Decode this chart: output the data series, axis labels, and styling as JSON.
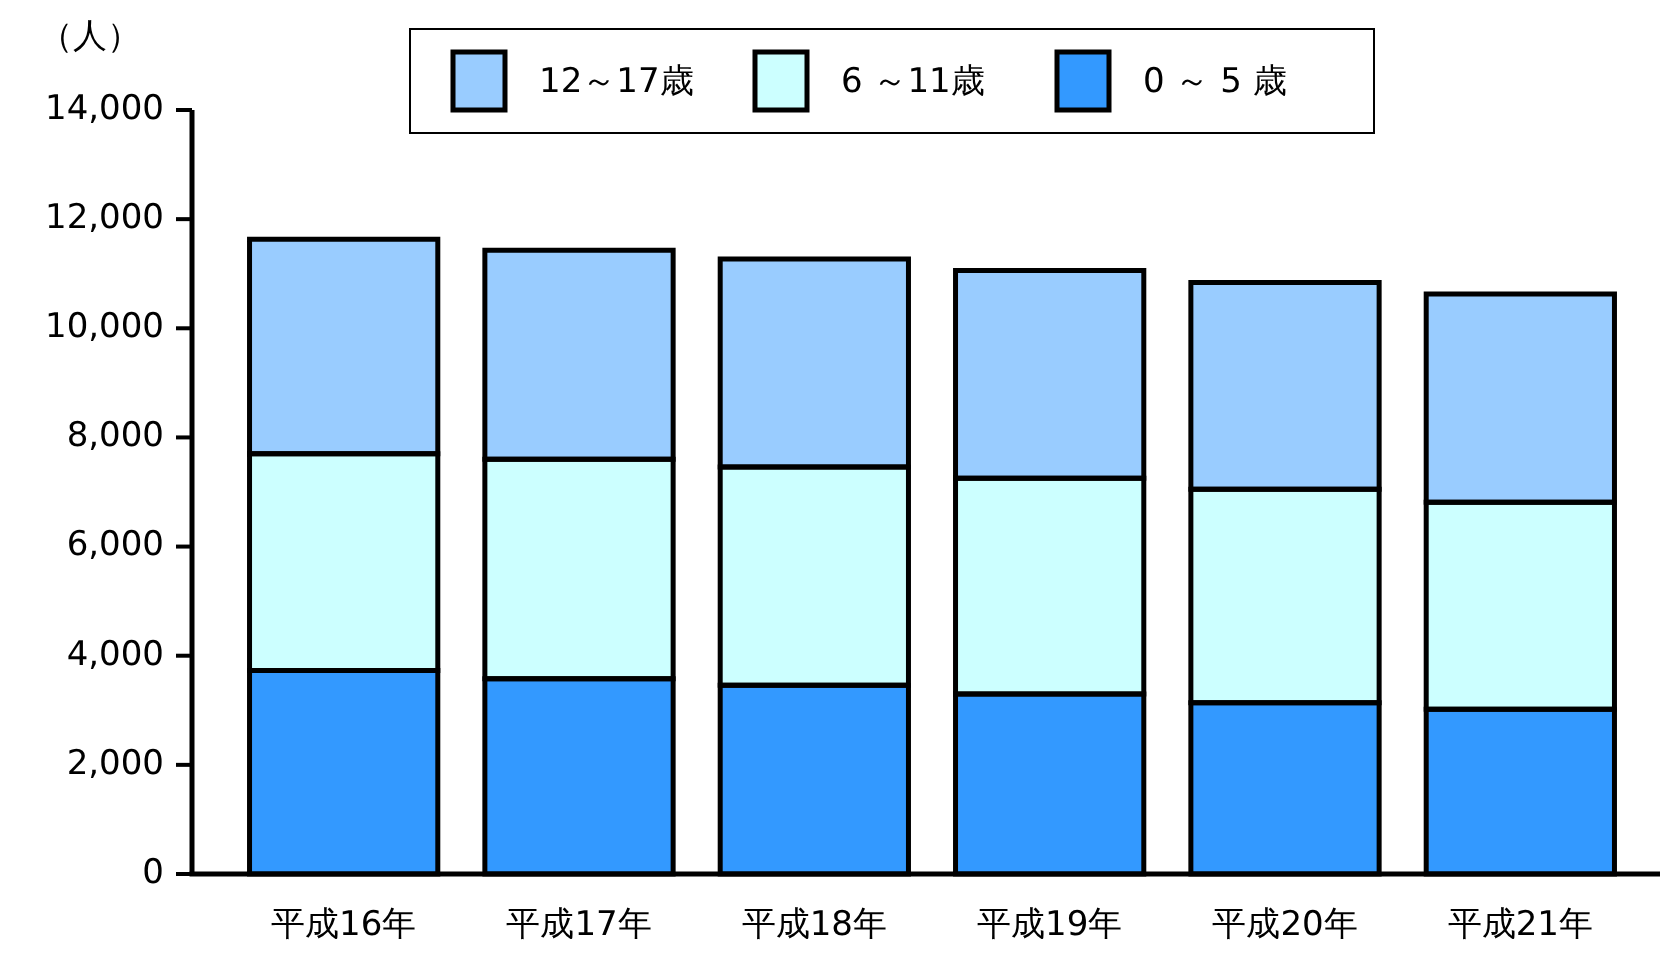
{
  "chart_data": {
    "type": "bar",
    "ylabel": "（人）",
    "categories": [
      "平成16年",
      "平成17年",
      "平成18年",
      "平成19年",
      "平成20年",
      "平成21年"
    ],
    "series": [
      {
        "name": "0 ～ 5 歳",
        "color": "#3399ff",
        "values": [
          3730,
          3580,
          3460,
          3300,
          3140,
          3020
        ]
      },
      {
        "name": "6 ～11歳",
        "color": "#ccffff",
        "values": [
          3970,
          4020,
          4000,
          3950,
          3910,
          3790
        ]
      },
      {
        "name": "12～17歳",
        "color": "#99ccff",
        "values": [
          3930,
          3830,
          3810,
          3810,
          3790,
          3820
        ]
      }
    ],
    "stacked": true,
    "ylim": [
      0,
      14000
    ],
    "yticks": [
      0,
      {
        "value": 2000,
        "label": "2,000"
      },
      {
        "value": 4000,
        "label": "4,000"
      },
      {
        "value": 6000,
        "label": "6,000"
      },
      {
        "value": 8000,
        "label": "8,000"
      },
      {
        "value": 10000,
        "label": "10,000"
      },
      {
        "value": 12000,
        "label": "12,000"
      },
      {
        "value": 14000,
        "label": "14,000"
      }
    ],
    "legend": "top"
  }
}
